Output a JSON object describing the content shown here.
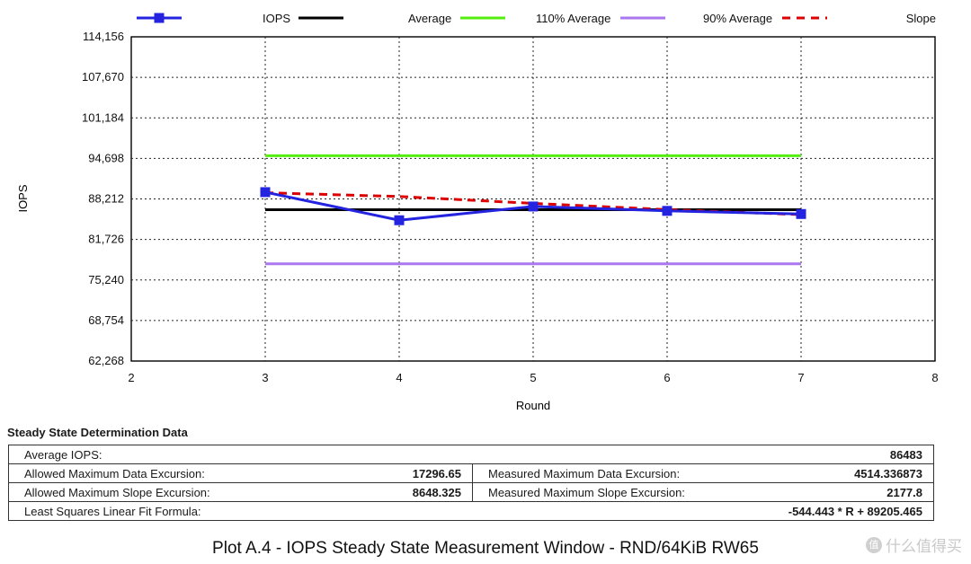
{
  "chart_data": {
    "type": "line",
    "xlabel": "Round",
    "ylabel": "IOPS",
    "xlim": [
      2,
      8
    ],
    "ylim": [
      62268,
      114156
    ],
    "x_ticks": [
      "2",
      "3",
      "4",
      "5",
      "6",
      "7",
      "8"
    ],
    "y_ticks": [
      "62,268",
      "68,754",
      "75,240",
      "81,726",
      "88,212",
      "94,698",
      "101,184",
      "107,670",
      "114,156"
    ],
    "grid": true,
    "legend_position": "top",
    "series": [
      {
        "name": "IOPS",
        "color": "#2323e0",
        "style": "solid",
        "marker": "square",
        "x": [
          3,
          4,
          5,
          6,
          7
        ],
        "values": [
          89300,
          84800,
          87000,
          86300,
          85800
        ]
      },
      {
        "name": "Average",
        "color": "#000000",
        "style": "solid",
        "x": [
          3,
          7
        ],
        "values": [
          86483,
          86483
        ]
      },
      {
        "name": "110% Average",
        "color": "#55ee11",
        "style": "solid",
        "x": [
          3,
          7
        ],
        "values": [
          95131,
          95131
        ]
      },
      {
        "name": "90% Average",
        "color": "#aa77ee",
        "style": "solid",
        "x": [
          3,
          7
        ],
        "values": [
          77835,
          77835
        ]
      },
      {
        "name": "Slope",
        "color": "#dd0000",
        "style": "dashed",
        "x": [
          3,
          4,
          5,
          6,
          7
        ],
        "values": [
          89200,
          88600,
          87500,
          86500,
          85700
        ]
      }
    ]
  },
  "ssd": {
    "title": "Steady State Determination Data",
    "average_iops_label": "Average IOPS:",
    "average_iops_value": "86483",
    "allowed_data_label": "Allowed Maximum Data Excursion:",
    "allowed_data_value": "17296.65",
    "measured_data_label": "Measured Maximum Data Excursion:",
    "measured_data_value": "4514.336873",
    "allowed_slope_label": "Allowed Maximum Slope Excursion:",
    "allowed_slope_value": "8648.325",
    "measured_slope_label": "Measured Maximum Slope Excursion:",
    "measured_slope_value": "2177.8",
    "fit_label": "Least Squares Linear Fit Formula:",
    "fit_value": "-544.443 * R + 89205.465"
  },
  "caption": "Plot A.4 - IOPS Steady State Measurement Window - RND/64KiB RW65",
  "watermark": {
    "icon": "值",
    "text": "什么值得买"
  }
}
